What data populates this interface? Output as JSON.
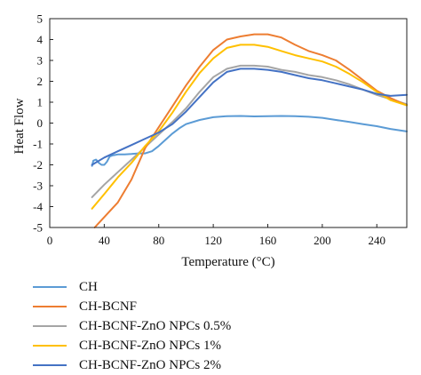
{
  "chart_data": {
    "type": "line",
    "title": "",
    "xlabel": "Temperature (°C)",
    "ylabel": "Heat Flow",
    "xlim": [
      0,
      262
    ],
    "ylim": [
      -5,
      5
    ],
    "xticks": [
      0,
      40,
      80,
      120,
      160,
      200,
      240
    ],
    "yticks": [
      -5,
      -4,
      -3,
      -2,
      -1,
      0,
      1,
      2,
      3,
      4,
      5
    ],
    "grid": false,
    "legend_position": "bottom",
    "series": [
      {
        "name": "CH",
        "color": "#5b9bd5",
        "x": [
          31,
          32,
          34,
          36,
          38,
          40,
          42,
          44,
          46,
          50,
          55,
          60,
          65,
          70,
          75,
          80,
          85,
          90,
          95,
          100,
          110,
          120,
          130,
          140,
          150,
          160,
          170,
          180,
          190,
          200,
          210,
          220,
          230,
          240,
          250,
          262
        ],
        "y": [
          -2.05,
          -1.8,
          -1.75,
          -1.9,
          -2.0,
          -2.0,
          -1.85,
          -1.6,
          -1.55,
          -1.5,
          -1.5,
          -1.48,
          -1.45,
          -1.45,
          -1.35,
          -1.1,
          -0.8,
          -0.5,
          -0.25,
          -0.05,
          0.15,
          0.28,
          0.33,
          0.34,
          0.32,
          0.33,
          0.34,
          0.33,
          0.3,
          0.25,
          0.15,
          0.05,
          -0.05,
          -0.15,
          -0.28,
          -0.4
        ]
      },
      {
        "name": "CH-BCNF",
        "color": "#ed7d31",
        "x": [
          33,
          40,
          50,
          60,
          70,
          80,
          90,
          100,
          110,
          120,
          130,
          140,
          150,
          160,
          170,
          180,
          190,
          200,
          210,
          220,
          230,
          240,
          250,
          262
        ],
        "y": [
          -5.0,
          -4.5,
          -3.8,
          -2.7,
          -1.2,
          -0.2,
          0.8,
          1.8,
          2.7,
          3.5,
          4.0,
          4.15,
          4.25,
          4.25,
          4.1,
          3.75,
          3.45,
          3.25,
          3.0,
          2.55,
          2.05,
          1.55,
          1.2,
          0.85
        ]
      },
      {
        "name": "CH-BCNF-ZnO NPCs 0.5%",
        "color": "#a5a5a5",
        "x": [
          31,
          40,
          50,
          60,
          70,
          80,
          90,
          100,
          110,
          120,
          130,
          140,
          150,
          160,
          170,
          180,
          190,
          200,
          210,
          220,
          230,
          240,
          250,
          262
        ],
        "y": [
          -3.55,
          -2.95,
          -2.35,
          -1.75,
          -1.15,
          -0.55,
          0.05,
          0.7,
          1.5,
          2.2,
          2.6,
          2.75,
          2.75,
          2.7,
          2.55,
          2.45,
          2.3,
          2.2,
          2.05,
          1.85,
          1.6,
          1.35,
          1.15,
          0.9
        ]
      },
      {
        "name": "CH-BCNF-ZnO NPCs 1%",
        "color": "#ffc000",
        "x": [
          31,
          40,
          50,
          60,
          70,
          80,
          90,
          100,
          110,
          120,
          130,
          140,
          150,
          160,
          170,
          180,
          190,
          200,
          210,
          220,
          230,
          240,
          250,
          262
        ],
        "y": [
          -4.1,
          -3.4,
          -2.6,
          -1.9,
          -1.1,
          -0.4,
          0.5,
          1.5,
          2.4,
          3.1,
          3.6,
          3.75,
          3.75,
          3.65,
          3.45,
          3.25,
          3.1,
          2.95,
          2.7,
          2.35,
          1.95,
          1.5,
          1.1,
          0.85
        ]
      },
      {
        "name": "CH-BCNF-ZnO NPCs 2%",
        "color": "#4472c4",
        "x": [
          31,
          40,
          50,
          60,
          70,
          80,
          90,
          100,
          110,
          120,
          130,
          140,
          150,
          160,
          170,
          180,
          190,
          200,
          210,
          220,
          230,
          240,
          250,
          262
        ],
        "y": [
          -2.0,
          -1.65,
          -1.35,
          -1.05,
          -0.75,
          -0.45,
          -0.05,
          0.55,
          1.25,
          1.95,
          2.45,
          2.6,
          2.6,
          2.55,
          2.45,
          2.3,
          2.15,
          2.05,
          1.9,
          1.75,
          1.6,
          1.4,
          1.3,
          1.35
        ]
      }
    ]
  }
}
